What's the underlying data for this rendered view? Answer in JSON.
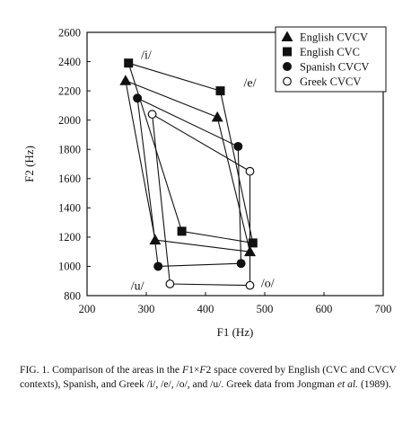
{
  "chart_data": {
    "type": "line",
    "xlabel": "F1 (Hz)",
    "ylabel": "F2 (Hz)",
    "xlim": [
      200,
      700
    ],
    "ylim": [
      800,
      2600
    ],
    "xticks": [
      "200",
      "300",
      "400",
      "500",
      "600",
      "700"
    ],
    "yticks": [
      "800",
      "1000",
      "1200",
      "1400",
      "1600",
      "1800",
      "2000",
      "2200",
      "2400",
      "2600"
    ],
    "grid": false,
    "legend_position": "top-right",
    "vowel_labels": [
      {
        "text": "/i/",
        "x": 300,
        "y": 2450
      },
      {
        "text": "/e/",
        "x": 475,
        "y": 2260
      },
      {
        "text": "/u/",
        "x": 285,
        "y": 870
      },
      {
        "text": "/o/",
        "x": 505,
        "y": 890
      }
    ],
    "series": [
      {
        "name": "English CVCV",
        "marker": "triangle-filled",
        "points": [
          [
            265,
            2270
          ],
          [
            420,
            2020
          ],
          [
            475,
            1100
          ],
          [
            315,
            1180
          ]
        ]
      },
      {
        "name": "English CVC",
        "marker": "square-filled",
        "points": [
          [
            270,
            2390
          ],
          [
            425,
            2200
          ],
          [
            480,
            1160
          ],
          [
            360,
            1240
          ]
        ]
      },
      {
        "name": "Spanish CVCV",
        "marker": "circle-filled",
        "points": [
          [
            285,
            2150
          ],
          [
            455,
            1820
          ],
          [
            460,
            1020
          ],
          [
            320,
            1000
          ]
        ]
      },
      {
        "name": "Greek CVCV",
        "marker": "circle-open",
        "points": [
          [
            310,
            2040
          ],
          [
            475,
            1650
          ],
          [
            475,
            870
          ],
          [
            340,
            880
          ]
        ]
      }
    ]
  },
  "caption": {
    "fig_label": "FIG. 1.",
    "part1": " Comparison of the areas in the ",
    "term_f1": "F",
    "term_f1_sub": "1",
    "times": "×",
    "term_f2": "F",
    "term_f2_sub": "2",
    "part2": " space covered by English (CVC and CVCV contexts), Spanish, and Greek /i/, /e/, /o/, and /u/. Greek data from Jongman ",
    "etal": "et al.",
    "part3": " (1989)."
  }
}
